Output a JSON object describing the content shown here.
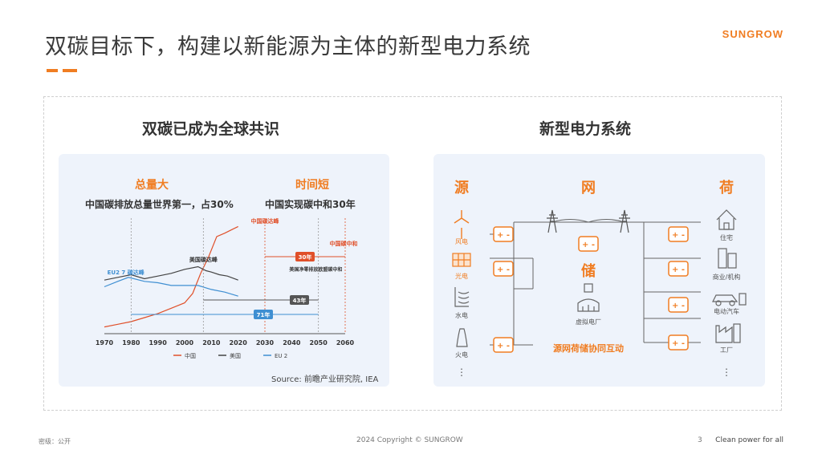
{
  "header": {
    "title": "双碳目标下，构建以新能源为主体的新型电力系统",
    "logo": "SUNGROW"
  },
  "left_panel": {
    "title": "双碳已成为全球共识",
    "block1_head": "总量大",
    "block1_desc": "中国碳排放总量世界第一，占30%",
    "block2_head": "时间短",
    "block2_desc": "中国实现碳中和30年",
    "source": "Source: 前瞻产业研究院, IEA"
  },
  "chart_data": {
    "type": "line",
    "x_ticks": [
      "1970",
      "1980",
      "1990",
      "2000",
      "2010",
      "2020",
      "2030",
      "2040",
      "2050",
      "2060"
    ],
    "xlim": [
      1970,
      2060
    ],
    "series": [
      {
        "name": "中国",
        "color": "#e0502a",
        "x": [
          1970,
          1975,
          1980,
          1985,
          1990,
          1995,
          2000,
          2003,
          2006,
          2009,
          2012,
          2015,
          2018,
          2020
        ],
        "y": [
          10,
          14,
          18,
          24,
          30,
          38,
          46,
          60,
          90,
          115,
          145,
          150,
          156,
          160
        ]
      },
      {
        "name": "美国",
        "color": "#444444",
        "x": [
          1970,
          1975,
          1980,
          1985,
          1990,
          1995,
          2000,
          2005,
          2008,
          2010,
          2013,
          2016,
          2020
        ],
        "y": [
          80,
          84,
          88,
          82,
          86,
          90,
          96,
          100,
          94,
          92,
          88,
          86,
          80
        ]
      },
      {
        "name": "EU 2",
        "color": "#3f8fd2",
        "x": [
          1970,
          1975,
          1979,
          1985,
          1990,
          1995,
          2000,
          2005,
          2010,
          2015,
          2020
        ],
        "y": [
          70,
          78,
          84,
          78,
          76,
          72,
          72,
          72,
          66,
          62,
          56
        ]
      }
    ],
    "annotations": {
      "china_peak": "中国碳达峰",
      "china_neutral": "中国碳中和",
      "us_peak": "美国碳达峰",
      "eu_peak": "EU2 7 碳达峰",
      "us_eu_neutral": "美国净零排放欧盟碳中和",
      "span_30": "30年",
      "span_43": "43年",
      "span_71": "71年"
    },
    "legend": [
      "中国",
      "美国",
      "EU 2"
    ]
  },
  "right_panel": {
    "title": "新型电力系统",
    "col_source": "源",
    "col_grid": "网",
    "col_load": "荷",
    "storage": "储",
    "sources": [
      "风电",
      "光电",
      "水电",
      "火电"
    ],
    "loads": [
      "住宅",
      "商业/机构",
      "电动汽车",
      "工厂"
    ],
    "vpp": "虚拟电厂",
    "caption": "源网荷储协同互动",
    "dots": "⋮"
  },
  "footer": {
    "left": "密级：公开",
    "center": "2024 Copyright © SUNGROW",
    "page": "3",
    "slogan": "Clean power for all"
  },
  "colors": {
    "accent": "#f07d22",
    "panel_bg": "#eef3fb",
    "blue": "#3f8fd2"
  }
}
